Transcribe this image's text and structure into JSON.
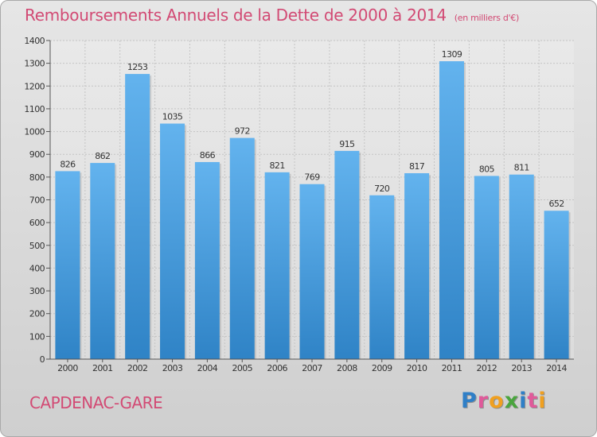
{
  "title": "Remboursements Annuels de la Dette de 2000 à 2014",
  "unit_note": "(en milliers d'€)",
  "city": "CAPDENAC-GARE",
  "logo": {
    "letters": [
      "P",
      "r",
      "o",
      "x",
      "i",
      "t",
      "i"
    ],
    "colors": [
      "#2f7fc7",
      "#e05a9a",
      "#f0a020",
      "#4aa53e",
      "#2f7fc7",
      "#e05a9a",
      "#f0a020"
    ]
  },
  "colors": {
    "bar_top": "#63b3ee",
    "bar_bottom": "#2f83c6",
    "title": "#d24a74"
  },
  "chart_data": {
    "type": "bar",
    "title": "Remboursements Annuels de la Dette de 2000 à 2014",
    "xlabel": "",
    "ylabel": "",
    "categories": [
      "2000",
      "2001",
      "2002",
      "2003",
      "2004",
      "2005",
      "2006",
      "2007",
      "2008",
      "2009",
      "2010",
      "2011",
      "2012",
      "2013",
      "2014"
    ],
    "values": [
      826,
      862,
      1253,
      1035,
      866,
      972,
      821,
      769,
      915,
      720,
      817,
      1309,
      805,
      811,
      652
    ],
    "ylim": [
      0,
      1400
    ],
    "yticks": [
      0,
      100,
      200,
      300,
      400,
      500,
      600,
      700,
      800,
      900,
      1000,
      1100,
      1200,
      1300,
      1400
    ],
    "grid": true
  }
}
